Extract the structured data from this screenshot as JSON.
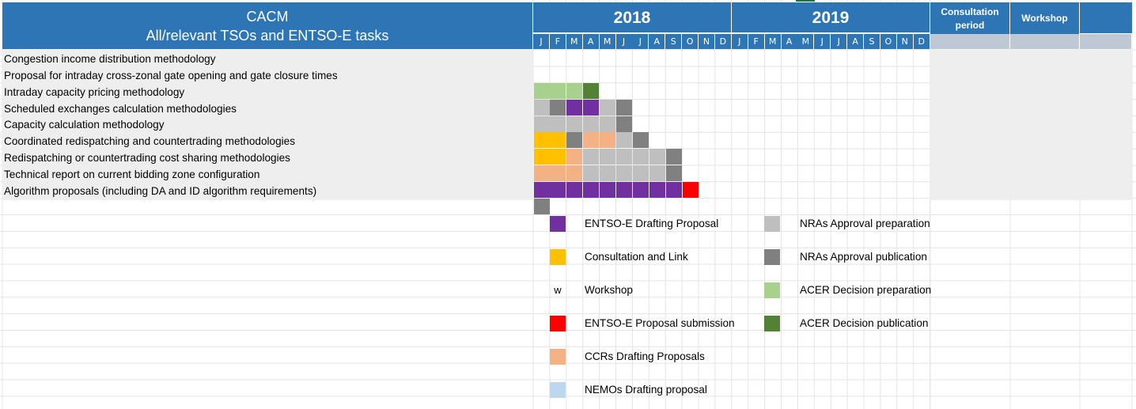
{
  "header": {
    "title_line1": "CACM",
    "title_line2": "All/relevant TSOs and ENTSO-E tasks",
    "year_2018": "2018",
    "year_2019": "2019",
    "consultation_line1": "Consultation",
    "consultation_line2": "period",
    "workshop": "Workshop",
    "months_2018": [
      "J",
      "F",
      "M",
      "A",
      "M",
      "J",
      "J",
      "A",
      "S",
      "O",
      "N",
      "D"
    ],
    "months_2019": [
      "J",
      "F",
      "M",
      "A",
      "M",
      "J",
      "J",
      "A",
      "S",
      "O",
      "N",
      "D"
    ]
  },
  "tasks": [
    {
      "label": "Congestion income distribution methodology",
      "cells": []
    },
    {
      "label": "Proposal for intraday cross-zonal gate opening and gate closure times",
      "cells": [
        "acer_prep",
        "acer_prep",
        "acer_prep",
        "acer_pub"
      ]
    },
    {
      "label": "Intraday capacity pricing methodology",
      "cells": [
        "nra_prep",
        "nra_pub",
        "entsoe_draft",
        "entsoe_draft",
        "nra_prep",
        "nra_pub"
      ]
    },
    {
      "label": "Scheduled exchanges calculation methodologies",
      "cells": [
        "nra_prep",
        "nra_prep",
        "nra_prep",
        "nra_prep",
        "nra_prep",
        "nra_pub"
      ]
    },
    {
      "label": "Capacity calculation methodology",
      "cells": [
        "consult",
        "consult",
        "nra_pub",
        "ccr_draft",
        "ccr_draft",
        "nra_prep",
        "nra_pub"
      ]
    },
    {
      "label": "Coordinated redispatching and countertrading methodologies",
      "cells": [
        "consult",
        "consult",
        "ccr_draft",
        "nra_prep",
        "nra_prep",
        "nra_prep",
        "nra_prep",
        "nra_prep",
        "nra_pub"
      ]
    },
    {
      "label": "Redispatching or countertrading cost sharing methodologies",
      "cells": [
        "ccr_draft",
        "ccr_draft",
        "ccr_draft",
        "nra_prep",
        "nra_prep",
        "nra_prep",
        "nra_prep",
        "nra_prep",
        "nra_pub"
      ]
    },
    {
      "label": "Technical report on current bidding zone configuration",
      "cells": [
        "entsoe_draft",
        "entsoe_draft",
        "entsoe_draft",
        "entsoe_draft",
        "entsoe_draft",
        "entsoe_draft",
        "entsoe_draft",
        "entsoe_draft",
        "entsoe_draft",
        "submission"
      ]
    },
    {
      "label": "Algorithm proposals (including DA and ID algorithm requirements)",
      "cells": [
        "nra_pub"
      ]
    }
  ],
  "colors": {
    "entsoe_draft": "#7030A0",
    "consult": "#FFC000",
    "submission": "#FF0000",
    "ccr_draft": "#F4B183",
    "nemo_draft": "#BDD7EE",
    "nra_prep": "#BFBFBF",
    "nra_pub": "#808080",
    "acer_prep": "#A9D18E",
    "acer_pub": "#548235",
    "header_blue": "#2E75B6"
  },
  "legend": {
    "left": [
      {
        "key": "entsoe_draft",
        "label": "ENTSO-E Drafting Proposal"
      },
      {
        "key": "consult",
        "label": "Consultation and Link"
      },
      {
        "key": "workshop",
        "symbol": "w",
        "label": "Workshop"
      },
      {
        "key": "submission",
        "label": "ENTSO-E Proposal submission"
      },
      {
        "key": "ccr_draft",
        "label": "CCRs Drafting Proposals"
      },
      {
        "key": "nemo_draft",
        "label": "NEMOs Drafting proposal"
      }
    ],
    "right": [
      {
        "key": "nra_prep",
        "label": "NRAs Approval preparation"
      },
      {
        "key": "nra_pub",
        "label": "NRAs Approval publication"
      },
      {
        "key": "acer_prep",
        "label": "ACER Decision preparation"
      },
      {
        "key": "acer_pub",
        "label": "ACER Decision publication"
      }
    ]
  }
}
